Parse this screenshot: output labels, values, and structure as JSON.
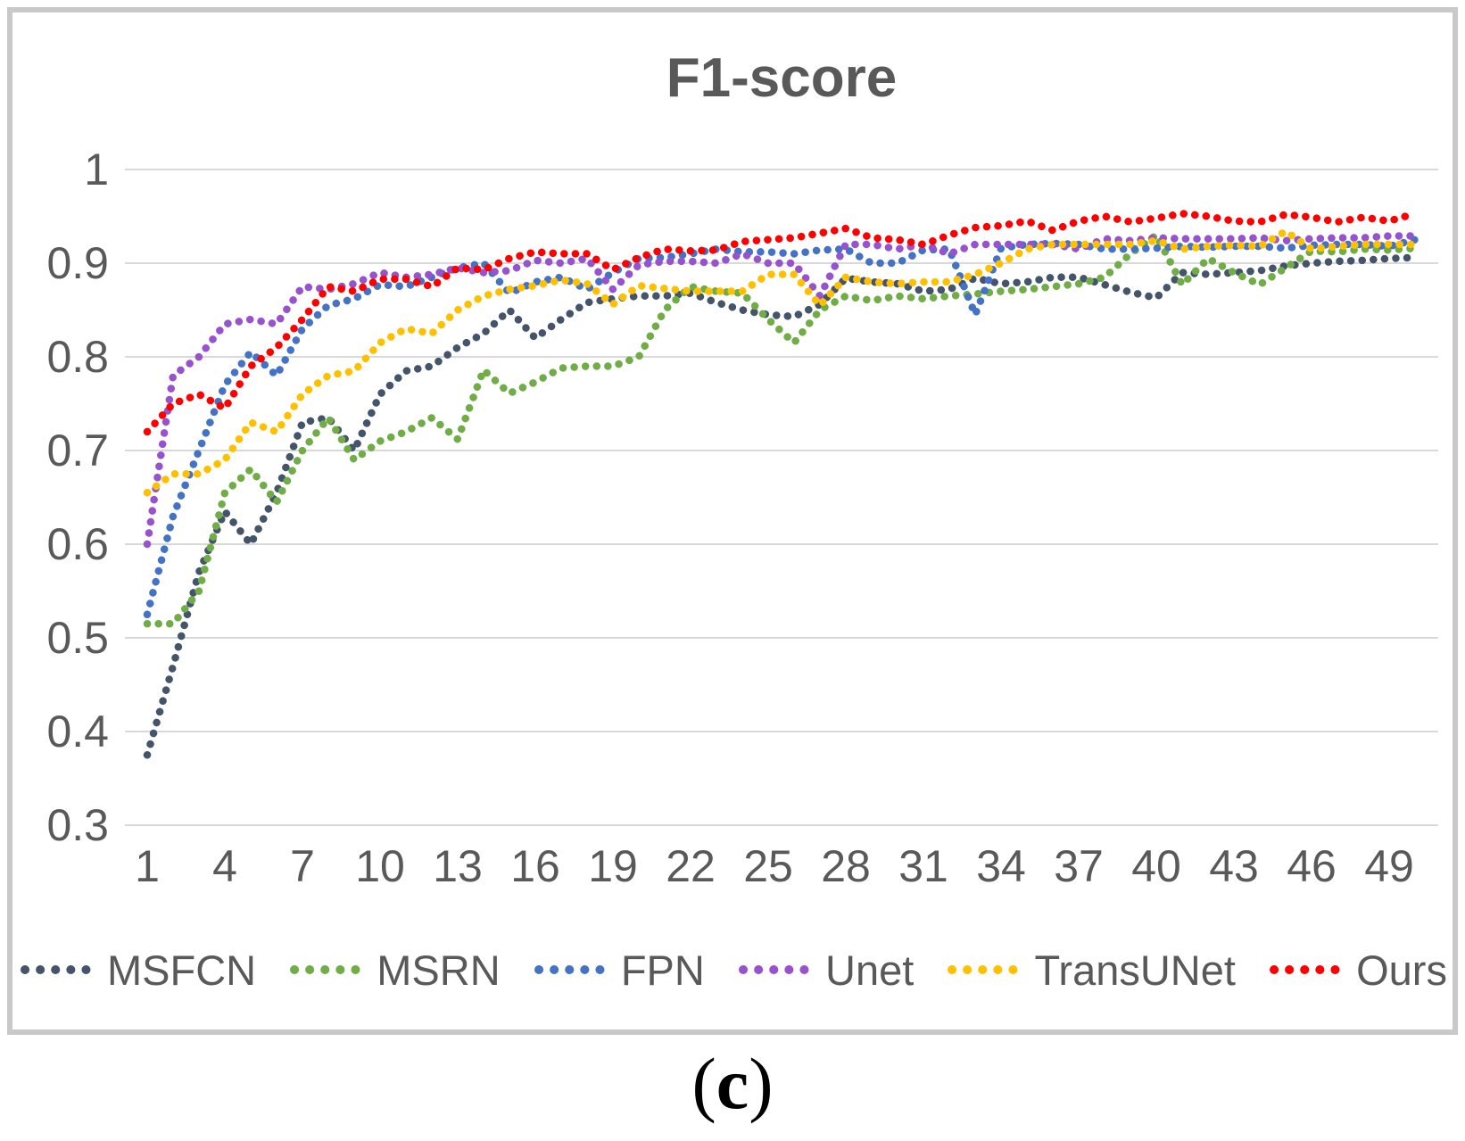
{
  "title": "F1-score",
  "caption": {
    "open": "(",
    "letter": "c",
    "close": ")"
  },
  "colors": {
    "grid": "#d9d9d9",
    "text": "#595959",
    "frame": "#c9c9c9",
    "MSFCN": "#44546a",
    "MSRN": "#70ad47",
    "FPN": "#4472c4",
    "Unet": "#9752cd",
    "TransUNet": "#ffc000",
    "Ours": "#ff0000"
  },
  "axes": {
    "y_ticks": [
      "1",
      "0.9",
      "0.8",
      "0.7",
      "0.6",
      "0.5",
      "0.4",
      "0.3"
    ],
    "y_values": [
      1.0,
      0.9,
      0.8,
      0.7,
      0.6,
      0.5,
      0.4,
      0.3
    ],
    "x_ticks": [
      "1",
      "4",
      "7",
      "10",
      "13",
      "16",
      "19",
      "22",
      "25",
      "28",
      "31",
      "34",
      "37",
      "40",
      "43",
      "46",
      "49"
    ],
    "x_tick_values": [
      1,
      4,
      7,
      10,
      13,
      16,
      19,
      22,
      25,
      28,
      31,
      34,
      37,
      40,
      43,
      46,
      49
    ]
  },
  "chart_data": {
    "type": "line",
    "line_style": "dotted",
    "title": "F1-score",
    "xlabel": "",
    "ylabel": "",
    "x_range": [
      1,
      50
    ],
    "ylim": [
      0.3,
      1.0
    ],
    "grid": "horizontal",
    "legend_position": "bottom",
    "x": [
      1,
      2,
      3,
      4,
      5,
      6,
      7,
      8,
      9,
      10,
      11,
      12,
      13,
      14,
      15,
      16,
      17,
      18,
      19,
      20,
      21,
      22,
      23,
      24,
      25,
      26,
      27,
      28,
      29,
      30,
      31,
      32,
      33,
      34,
      35,
      36,
      37,
      38,
      39,
      40,
      41,
      42,
      43,
      44,
      45,
      46,
      47,
      48,
      49,
      50
    ],
    "series": [
      {
        "name": "MSFCN",
        "color": "#44546a",
        "values": [
          0.375,
          0.47,
          0.57,
          0.635,
          0.6,
          0.655,
          0.73,
          0.735,
          0.7,
          0.76,
          0.785,
          0.79,
          0.81,
          0.825,
          0.85,
          0.82,
          0.84,
          0.858,
          0.862,
          0.865,
          0.865,
          0.868,
          0.858,
          0.85,
          0.845,
          0.843,
          0.856,
          0.884,
          0.88,
          0.878,
          0.87,
          0.872,
          0.884,
          0.878,
          0.88,
          0.885,
          0.885,
          0.877,
          0.869,
          0.863,
          0.89,
          0.888,
          0.89,
          0.892,
          0.897,
          0.9,
          0.902,
          0.903,
          0.905,
          0.906
        ]
      },
      {
        "name": "MSRN",
        "color": "#70ad47",
        "values": [
          0.515,
          0.515,
          0.55,
          0.655,
          0.68,
          0.645,
          0.7,
          0.735,
          0.69,
          0.71,
          0.72,
          0.735,
          0.712,
          0.786,
          0.761,
          0.773,
          0.788,
          0.79,
          0.79,
          0.8,
          0.85,
          0.875,
          0.87,
          0.868,
          0.84,
          0.815,
          0.85,
          0.865,
          0.86,
          0.865,
          0.862,
          0.865,
          0.867,
          0.87,
          0.872,
          0.875,
          0.878,
          0.885,
          0.91,
          0.93,
          0.877,
          0.905,
          0.89,
          0.877,
          0.895,
          0.913,
          0.912,
          0.915,
          0.914,
          0.916
        ]
      },
      {
        "name": "FPN",
        "color": "#4472c4",
        "values": [
          0.525,
          0.63,
          0.7,
          0.77,
          0.805,
          0.78,
          0.83,
          0.855,
          0.862,
          0.877,
          0.875,
          0.885,
          0.895,
          0.9,
          0.868,
          0.88,
          0.885,
          0.872,
          0.89,
          0.905,
          0.906,
          0.91,
          0.915,
          0.912,
          0.912,
          0.91,
          0.914,
          0.915,
          0.9,
          0.9,
          0.914,
          0.915,
          0.845,
          0.916,
          0.92,
          0.921,
          0.92,
          0.915,
          0.915,
          0.916,
          0.918,
          0.917,
          0.918,
          0.918,
          0.916,
          0.919,
          0.92,
          0.92,
          0.918,
          0.925
        ]
      },
      {
        "name": "Unet",
        "color": "#9752cd",
        "values": [
          0.6,
          0.78,
          0.8,
          0.835,
          0.84,
          0.835,
          0.875,
          0.872,
          0.878,
          0.89,
          0.885,
          0.888,
          0.895,
          0.89,
          0.892,
          0.903,
          0.9,
          0.905,
          0.872,
          0.898,
          0.902,
          0.902,
          0.9,
          0.91,
          0.9,
          0.9,
          0.865,
          0.92,
          0.92,
          0.915,
          0.92,
          0.91,
          0.92,
          0.92,
          0.92,
          0.92,
          0.915,
          0.926,
          0.924,
          0.927,
          0.926,
          0.926,
          0.926,
          0.927,
          0.924,
          0.926,
          0.927,
          0.927,
          0.929,
          0.929
        ]
      },
      {
        "name": "TransUNet",
        "color": "#ffc000",
        "values": [
          0.655,
          0.675,
          0.675,
          0.69,
          0.73,
          0.72,
          0.76,
          0.78,
          0.785,
          0.815,
          0.83,
          0.825,
          0.85,
          0.865,
          0.872,
          0.876,
          0.882,
          0.878,
          0.856,
          0.876,
          0.873,
          0.87,
          0.87,
          0.87,
          0.888,
          0.888,
          0.855,
          0.885,
          0.88,
          0.878,
          0.88,
          0.88,
          0.888,
          0.9,
          0.915,
          0.92,
          0.92,
          0.92,
          0.92,
          0.924,
          0.915,
          0.918,
          0.919,
          0.918,
          0.934,
          0.915,
          0.918,
          0.92,
          0.92,
          0.92
        ]
      },
      {
        "name": "Ours",
        "color": "#ff0000",
        "values": [
          0.72,
          0.75,
          0.76,
          0.745,
          0.79,
          0.81,
          0.84,
          0.875,
          0.87,
          0.883,
          0.883,
          0.875,
          0.895,
          0.893,
          0.905,
          0.912,
          0.91,
          0.91,
          0.893,
          0.906,
          0.915,
          0.913,
          0.914,
          0.923,
          0.925,
          0.927,
          0.932,
          0.937,
          0.927,
          0.925,
          0.92,
          0.93,
          0.938,
          0.94,
          0.945,
          0.935,
          0.945,
          0.95,
          0.944,
          0.948,
          0.953,
          0.95,
          0.945,
          0.944,
          0.952,
          0.949,
          0.944,
          0.949,
          0.945,
          0.953
        ]
      }
    ]
  },
  "legend": {
    "items": [
      {
        "label": "MSFCN",
        "color": "#44546a"
      },
      {
        "label": "MSRN",
        "color": "#70ad47"
      },
      {
        "label": "FPN",
        "color": "#4472c4"
      },
      {
        "label": "Unet",
        "color": "#9752cd"
      },
      {
        "label": "TransUNet",
        "color": "#ffc000"
      },
      {
        "label": "Ours",
        "color": "#ff0000"
      }
    ]
  }
}
